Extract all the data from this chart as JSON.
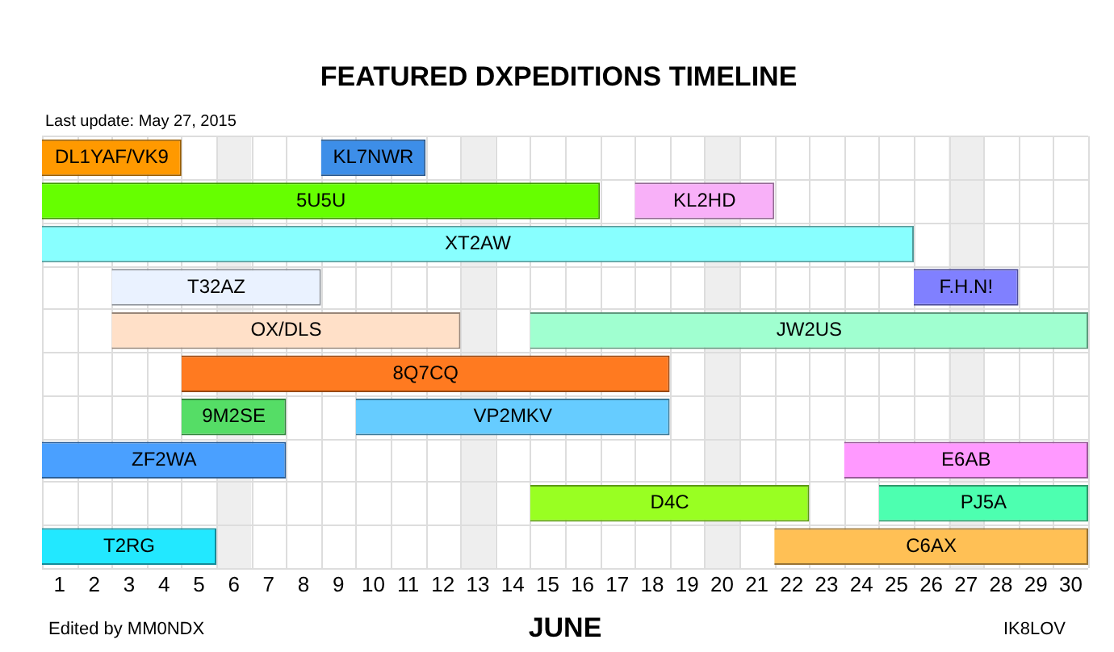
{
  "chart_data": {
    "type": "bar",
    "orientation": "horizontal",
    "title": "FEATURED DXPEDITIONS TIMELINE",
    "xlabel": "JUNE",
    "categories": [
      null,
      null,
      null,
      null,
      null,
      null,
      null,
      null,
      null,
      null
    ],
    "xlim": [
      0.5,
      30.5
    ],
    "xticks": [
      1,
      2,
      3,
      4,
      5,
      6,
      7,
      8,
      9,
      10,
      11,
      12,
      13,
      14,
      15,
      16,
      17,
      18,
      19,
      20,
      21,
      22,
      23,
      24,
      25,
      26,
      27,
      28,
      29,
      30
    ],
    "grid": true,
    "legend": false,
    "bands": [
      {
        "axis": "x",
        "from": 5.5,
        "to": 6.5,
        "color": "#eeeeee"
      },
      {
        "axis": "x",
        "from": 12.5,
        "to": 13.5,
        "color": "#eeeeee"
      },
      {
        "axis": "x",
        "from": 19.5,
        "to": 20.5,
        "color": "#eeeeee"
      },
      {
        "axis": "x",
        "from": 26.5,
        "to": 27.5,
        "color": "#eeeeee"
      }
    ],
    "series": [
      {
        "name": "DL1YAF/VK9",
        "color": "#ff9900",
        "base": [
          0.5,
          null,
          null,
          null,
          null,
          null,
          null,
          null,
          null,
          null
        ],
        "values": [
          4,
          null,
          null,
          null,
          null,
          null,
          null,
          null,
          null,
          null
        ]
      },
      {
        "name": "KL7NWR",
        "color": "#3d8ee8",
        "base": [
          8.5,
          null,
          null,
          null,
          null,
          null,
          null,
          null,
          null,
          null
        ],
        "values": [
          3,
          null,
          null,
          null,
          null,
          null,
          null,
          null,
          null,
          null
        ]
      },
      {
        "name": "5U5U",
        "color": "#66ff00",
        "base": [
          null,
          0.5,
          null,
          null,
          null,
          null,
          null,
          null,
          null,
          null
        ],
        "values": [
          null,
          16,
          null,
          null,
          null,
          null,
          null,
          null,
          null,
          null
        ]
      },
      {
        "name": "KL2HD",
        "color": "#f8b0f8",
        "base": [
          null,
          17.5,
          null,
          null,
          null,
          null,
          null,
          null,
          null,
          null
        ],
        "values": [
          null,
          4,
          null,
          null,
          null,
          null,
          null,
          null,
          null,
          null
        ]
      },
      {
        "name": "XT2AW",
        "color": "#88ffff",
        "base": [
          null,
          null,
          0.5,
          null,
          null,
          null,
          null,
          null,
          null,
          null
        ],
        "values": [
          null,
          null,
          25,
          null,
          null,
          null,
          null,
          null,
          null,
          null
        ]
      },
      {
        "name": "T32AZ",
        "color": "#eaf2ff",
        "base": [
          null,
          null,
          null,
          2.5,
          null,
          null,
          null,
          null,
          null,
          null
        ],
        "values": [
          null,
          null,
          null,
          6,
          null,
          null,
          null,
          null,
          null,
          null
        ]
      },
      {
        "name": "F.H.N!",
        "color": "#8080ff",
        "base": [
          null,
          null,
          null,
          25.5,
          null,
          null,
          null,
          null,
          null,
          null
        ],
        "values": [
          null,
          null,
          null,
          3,
          null,
          null,
          null,
          null,
          null,
          null
        ]
      },
      {
        "name": "OX/DLS",
        "color": "#ffe0c8",
        "base": [
          null,
          null,
          null,
          null,
          2.5,
          null,
          null,
          null,
          null,
          null
        ],
        "values": [
          null,
          null,
          null,
          null,
          10,
          null,
          null,
          null,
          null,
          null
        ]
      },
      {
        "name": "JW2US",
        "color": "#a0ffd0",
        "base": [
          null,
          null,
          null,
          null,
          14.5,
          null,
          null,
          null,
          null,
          null
        ],
        "values": [
          null,
          null,
          null,
          null,
          16,
          null,
          null,
          null,
          null,
          null
        ]
      },
      {
        "name": "8Q7CQ",
        "color": "#ff7a20",
        "base": [
          null,
          null,
          null,
          null,
          null,
          4.5,
          null,
          null,
          null,
          null
        ],
        "values": [
          null,
          null,
          null,
          null,
          null,
          14,
          null,
          null,
          null,
          null
        ]
      },
      {
        "name": "9M2SE",
        "color": "#55dd66",
        "base": [
          null,
          null,
          null,
          null,
          null,
          null,
          4.5,
          null,
          null,
          null
        ],
        "values": [
          null,
          null,
          null,
          null,
          null,
          null,
          3,
          null,
          null,
          null
        ]
      },
      {
        "name": "VP2MKV",
        "color": "#66ccff",
        "base": [
          null,
          null,
          null,
          null,
          null,
          null,
          9.5,
          null,
          null,
          null
        ],
        "values": [
          null,
          null,
          null,
          null,
          null,
          null,
          9,
          null,
          null,
          null
        ]
      },
      {
        "name": "ZF2WA",
        "color": "#4aa0ff",
        "base": [
          null,
          null,
          null,
          null,
          null,
          null,
          null,
          0.5,
          null,
          null
        ],
        "values": [
          null,
          null,
          null,
          null,
          null,
          null,
          null,
          7,
          null,
          null
        ]
      },
      {
        "name": "E6AB",
        "color": "#ff99ff",
        "base": [
          null,
          null,
          null,
          null,
          null,
          null,
          null,
          23.5,
          null,
          null
        ],
        "values": [
          null,
          null,
          null,
          null,
          null,
          null,
          null,
          7,
          null,
          null
        ]
      },
      {
        "name": "D4C",
        "color": "#99ff22",
        "base": [
          null,
          null,
          null,
          null,
          null,
          null,
          null,
          null,
          14.5,
          null
        ],
        "values": [
          null,
          null,
          null,
          null,
          null,
          null,
          null,
          null,
          8,
          null
        ]
      },
      {
        "name": "PJ5A",
        "color": "#4dffb0",
        "base": [
          null,
          null,
          null,
          null,
          null,
          null,
          null,
          null,
          24.5,
          null
        ],
        "values": [
          null,
          null,
          null,
          null,
          null,
          null,
          null,
          null,
          6,
          null
        ]
      },
      {
        "name": "T2RG",
        "color": "#22e8ff",
        "base": [
          null,
          null,
          null,
          null,
          null,
          null,
          null,
          null,
          null,
          0.5
        ],
        "values": [
          null,
          null,
          null,
          null,
          null,
          null,
          null,
          null,
          null,
          5
        ]
      },
      {
        "name": "C6AX",
        "color": "#ffc055",
        "base": [
          null,
          null,
          null,
          null,
          null,
          null,
          null,
          null,
          null,
          21.5
        ],
        "values": [
          null,
          null,
          null,
          null,
          null,
          null,
          null,
          null,
          null,
          9
        ]
      }
    ],
    "annotations": [
      "Last update: May 27, 2015",
      "Edited by MM0NDX",
      "IK8LOV"
    ]
  }
}
